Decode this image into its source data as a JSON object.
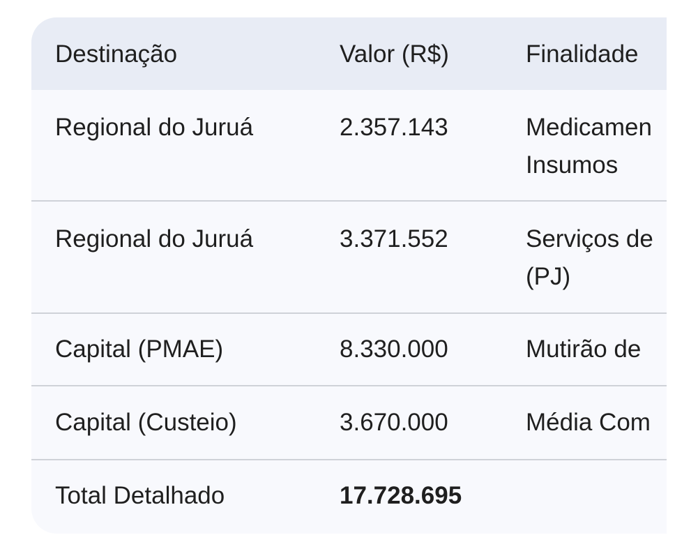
{
  "table": {
    "headers": [
      "Destinação",
      "Valor (R$)",
      "Finalidade"
    ],
    "rows": [
      {
        "destinacao": "Regional do Juruá",
        "valor": "2.357.143",
        "finalidade_lines": [
          "Medicamen",
          "Insumos"
        ]
      },
      {
        "destinacao": "Regional do Juruá",
        "valor": "3.371.552",
        "finalidade_lines": [
          "Serviços de",
          "(PJ)"
        ]
      },
      {
        "destinacao": "Capital (PMAE)",
        "valor": "8.330.000",
        "finalidade_lines": [
          "Mutirão de"
        ]
      },
      {
        "destinacao": "Capital (Custeio)",
        "valor": "3.670.000",
        "finalidade_lines": [
          "Média Com"
        ]
      }
    ],
    "total": {
      "label": "Total Detalhado",
      "valor": "17.728.695"
    }
  }
}
